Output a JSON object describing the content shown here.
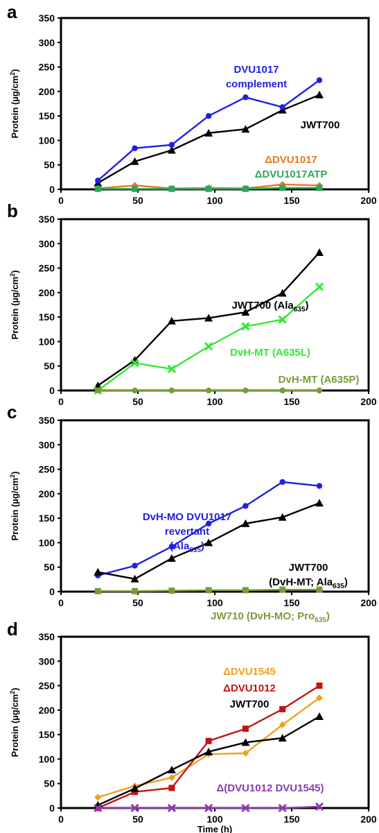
{
  "chart_data": [
    {
      "type": "line",
      "panel": "a",
      "ylabel_main": "Protein (µg/cm",
      "ylabel_sup": "2",
      "ylabel_end": ")",
      "xlabel": "",
      "xlim": [
        0,
        200
      ],
      "ylim": [
        0,
        350
      ],
      "xticks": [
        0,
        50,
        100,
        150,
        200
      ],
      "yticks": [
        0,
        50,
        100,
        150,
        200,
        250,
        300,
        350
      ],
      "grid": false,
      "legend": "none",
      "series": [
        {
          "name": "JWT700",
          "color": "#000000",
          "marker": "triangle",
          "x": [
            24,
            48,
            72,
            96,
            120,
            144,
            168
          ],
          "values": [
            13,
            57,
            80,
            115,
            123,
            162,
            193
          ]
        },
        {
          "name": "DVU1017 complement",
          "color": "#1f1fe6",
          "marker": "circle",
          "x": [
            24,
            48,
            72,
            96,
            120,
            144,
            168
          ],
          "values": [
            18,
            84,
            91,
            150,
            188,
            168,
            223
          ]
        },
        {
          "name": "ΔDVU1017",
          "color": "#e8781c",
          "marker": "diamond",
          "x": [
            24,
            48,
            72,
            96,
            120,
            144,
            168
          ],
          "values": [
            2,
            8,
            2,
            3,
            2,
            10,
            8
          ]
        },
        {
          "name": "ΔDVU1017ATP",
          "color": "#2ca85a",
          "marker": "square",
          "x": [
            24,
            48,
            72,
            96,
            120,
            144,
            168
          ],
          "values": [
            1,
            1,
            1,
            1,
            1,
            3,
            3
          ]
        }
      ],
      "annotations": [
        {
          "lines": [
            "DVU1017",
            "complement"
          ],
          "color": "#1f1fe6"
        },
        {
          "lines": [
            "JWT700"
          ],
          "color": "#000000"
        },
        {
          "lines": [
            "ΔDVU1017"
          ],
          "color": "#e8781c"
        },
        {
          "lines": [
            "ΔDVU1017ATP"
          ],
          "color": "#2ca85a"
        }
      ]
    },
    {
      "type": "line",
      "panel": "b",
      "ylabel_main": "Protein (µg/cm",
      "ylabel_sup": "2",
      "ylabel_end": ")",
      "xlabel": "",
      "xlim": [
        0,
        200
      ],
      "ylim": [
        0,
        350
      ],
      "xticks": [
        0,
        50,
        100,
        150,
        200
      ],
      "yticks": [
        0,
        50,
        100,
        150,
        200,
        250,
        300,
        350
      ],
      "grid": false,
      "legend": "none",
      "series": [
        {
          "name": "JWT700 (Ala635)",
          "color": "#000000",
          "marker": "triangle",
          "x": [
            24,
            48,
            72,
            96,
            120,
            144,
            168
          ],
          "values": [
            10,
            62,
            142,
            148,
            160,
            199,
            282
          ]
        },
        {
          "name": "DvH-MT (A635L)",
          "color": "#33e833",
          "marker": "x",
          "x": [
            24,
            48,
            72,
            96,
            120,
            144,
            168
          ],
          "values": [
            0,
            56,
            44,
            90,
            131,
            145,
            212
          ]
        },
        {
          "name": "DvH-MT (A635P)",
          "color": "#7a9a3a",
          "marker": "circle",
          "x": [
            24,
            48,
            72,
            96,
            120,
            144,
            168
          ],
          "values": [
            0,
            0,
            0,
            0,
            0,
            0,
            0
          ]
        }
      ],
      "annotations": [
        {
          "lines": [
            "JWT700 (Ala",
            "635",
            ")"
          ],
          "color": "#000000"
        },
        {
          "lines": [
            "DvH-MT (A635L)"
          ],
          "color": "#33e833"
        },
        {
          "lines": [
            "DvH-MT (A635P)"
          ],
          "color": "#7a9a3a"
        }
      ]
    },
    {
      "type": "line",
      "panel": "c",
      "ylabel_main": "Protein (µg/cm",
      "ylabel_sup": "2",
      "ylabel_end": ")",
      "xlabel": "",
      "xlim": [
        0,
        200
      ],
      "ylim": [
        0,
        350
      ],
      "xticks": [
        0,
        50,
        100,
        150,
        200
      ],
      "yticks": [
        0,
        50,
        100,
        150,
        200,
        250,
        300,
        350
      ],
      "grid": false,
      "legend": "none",
      "series": [
        {
          "name": "DvH-MO DVU1017 revertant (Ala635)",
          "color": "#1f1fe6",
          "marker": "circle",
          "x": [
            24,
            48,
            72,
            96,
            120,
            144,
            168
          ],
          "values": [
            33,
            53,
            92,
            139,
            175,
            224,
            216
          ]
        },
        {
          "name": "JWT700 (DvH-MT; Ala635)",
          "color": "#000000",
          "marker": "triangle",
          "x": [
            24,
            48,
            72,
            96,
            120,
            144,
            168
          ],
          "values": [
            40,
            26,
            68,
            100,
            139,
            152,
            181
          ]
        },
        {
          "name": "JW710 (DvH-MO; Pro635)",
          "color": "#7a9a3a",
          "marker": "square",
          "x": [
            24,
            48,
            72,
            96,
            120,
            144,
            168
          ],
          "values": [
            1,
            1,
            2,
            3,
            3,
            4,
            4
          ]
        }
      ],
      "annotations": [
        {
          "lines": [
            "DvH-MO DVU1017",
            "revertant",
            "(Ala",
            "635",
            ")"
          ],
          "color": "#1f1fe6"
        },
        {
          "lines": [
            "JWT700",
            "(DvH-MT; Ala",
            "635",
            ")"
          ],
          "color": "#000000"
        },
        {
          "lines": [
            "JW710 (DvH-MO; Pro",
            "635",
            ")"
          ],
          "color": "#7a9a3a"
        }
      ]
    },
    {
      "type": "line",
      "panel": "d",
      "ylabel_main": "Protein (µg/cm",
      "ylabel_sup": "2",
      "ylabel_end": ")",
      "xlabel": "Time (h)",
      "xlim": [
        0,
        200
      ],
      "ylim": [
        0,
        350
      ],
      "xticks": [
        0,
        50,
        100,
        150,
        200
      ],
      "yticks": [
        0,
        50,
        100,
        150,
        200,
        250,
        300,
        350
      ],
      "grid": false,
      "legend": "none",
      "series": [
        {
          "name": "ΔDVU1545",
          "color": "#f0a020",
          "marker": "diamond",
          "x": [
            24,
            48,
            72,
            96,
            120,
            144,
            168
          ],
          "values": [
            22,
            45,
            62,
            110,
            112,
            170,
            225
          ]
        },
        {
          "name": "ΔDVU1012",
          "color": "#c41414",
          "marker": "square",
          "x": [
            24,
            48,
            72,
            96,
            120,
            144,
            168
          ],
          "values": [
            0,
            33,
            41,
            137,
            162,
            202,
            250
          ]
        },
        {
          "name": "JWT700",
          "color": "#000000",
          "marker": "triangle",
          "x": [
            24,
            48,
            72,
            96,
            120,
            144,
            168
          ],
          "values": [
            6,
            40,
            78,
            115,
            134,
            143,
            187
          ]
        },
        {
          "name": "Δ(DVU1012 DVU1545)",
          "color": "#8a3ab0",
          "marker": "x",
          "x": [
            24,
            48,
            72,
            96,
            120,
            144,
            168
          ],
          "values": [
            0,
            0,
            0,
            0,
            0,
            0,
            3
          ]
        }
      ],
      "annotations": [
        {
          "lines": [
            "ΔDVU1545"
          ],
          "color": "#f0a020"
        },
        {
          "lines": [
            "ΔDVU1012"
          ],
          "color": "#c41414"
        },
        {
          "lines": [
            "JWT700"
          ],
          "color": "#000000"
        },
        {
          "lines": [
            "Δ(DVU1012 DVU1545)"
          ],
          "color": "#8a3ab0"
        }
      ]
    }
  ]
}
